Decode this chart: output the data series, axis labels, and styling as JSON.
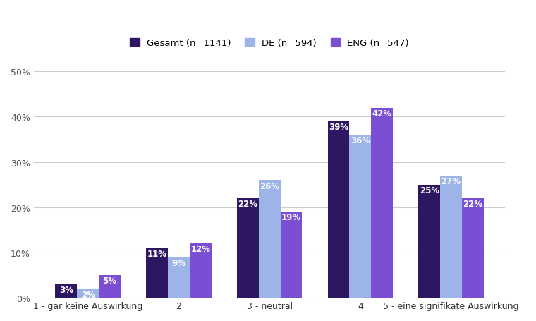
{
  "categories": [
    "1 - gar keine Auswirkung",
    "2",
    "3 - neutral",
    "4",
    "5 - eine signifikate Auswirkung"
  ],
  "series": {
    "Gesamt (n=1141)": [
      3,
      11,
      22,
      39,
      25
    ],
    "DE (n=594)": [
      2,
      9,
      26,
      36,
      27
    ],
    "ENG (n=547)": [
      5,
      12,
      19,
      42,
      22
    ]
  },
  "colors": {
    "Gesamt (n=1141)": "#2e1760",
    "DE (n=594)": "#9db4e8",
    "ENG (n=547)": "#7b4fd4"
  },
  "ylim": [
    0,
    52
  ],
  "yticks": [
    0,
    10,
    20,
    30,
    40,
    50
  ],
  "ytick_labels": [
    "0%",
    "10%",
    "20%",
    "30%",
    "40%",
    "50%"
  ],
  "background_color": "#ffffff",
  "grid_color": "#cccccc",
  "label_fontsize": 8.5,
  "legend_fontsize": 9.5,
  "tick_fontsize": 9,
  "bar_width": 0.24,
  "label_color": "#ffffff"
}
